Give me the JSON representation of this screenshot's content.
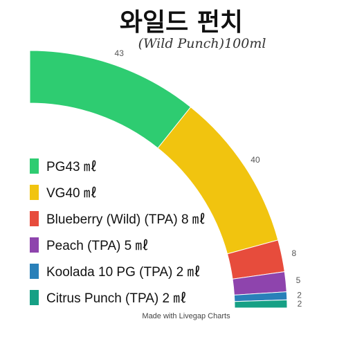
{
  "title": "와일드 펀치",
  "subtitle": "(Wild Punch)100ml",
  "credit": "Made with Livegap Charts",
  "chart_data": {
    "type": "pie",
    "title": "와일드 펀치",
    "subtitle": "(Wild Punch)100ml",
    "slices": [
      {
        "label": "PG43 ㎖",
        "value": 43,
        "color": "#2ecc71"
      },
      {
        "label": "VG40 ㎖",
        "value": 40,
        "color": "#f1c40f"
      },
      {
        "label": "Blueberry (Wild) (TPA) 8 ㎖",
        "value": 8,
        "color": "#e74c3c"
      },
      {
        "label": "Peach (TPA) 5 ㎖",
        "value": 5,
        "color": "#8e44ad"
      },
      {
        "label": "Koolada 10 PG (TPA) 2 ㎖",
        "value": 2,
        "color": "#2980b9"
      },
      {
        "label": "Citrus Punch (TPA) 2 ㎖",
        "value": 2,
        "color": "#16a085"
      }
    ],
    "legend_position": "left"
  }
}
